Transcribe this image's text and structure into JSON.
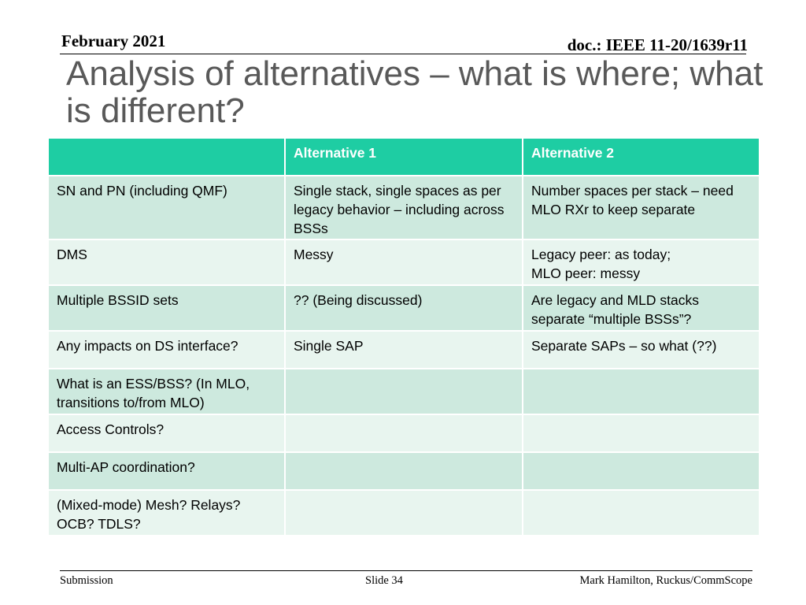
{
  "header": {
    "date": "February 2021",
    "doc_id": "doc.: IEEE 11-20/1639r11"
  },
  "title": "Analysis of alternatives – what is where; what is different?",
  "table": {
    "headers": [
      "",
      "Alternative 1",
      "Alternative 2"
    ],
    "rows": [
      [
        "SN and PN (including QMF)",
        "Single stack, single spaces as per legacy behavior – including across BSSs",
        "Number spaces per stack – need MLO RXr to keep separate"
      ],
      [
        "DMS",
        "Messy",
        "Legacy peer: as today;\nMLO peer: messy"
      ],
      [
        "Multiple BSSID sets",
        "?? (Being discussed)",
        "Are legacy and MLD stacks separate “multiple BSSs”?"
      ],
      [
        "Any impacts on DS interface?",
        "Single SAP",
        "Separate SAPs – so what (??)"
      ],
      [
        "What is an ESS/BSS?  (In MLO, transitions to/from MLO)",
        "",
        ""
      ],
      [
        "Access Controls?",
        "",
        ""
      ],
      [
        "Multi-AP coordination?",
        "",
        ""
      ],
      [
        "(Mixed-mode) Mesh?  Relays?  OCB?  TDLS?",
        "",
        ""
      ]
    ]
  },
  "footer": {
    "left": "Submission",
    "center": "Slide 34",
    "right": "Mark Hamilton, Ruckus/CommScope"
  },
  "colors": {
    "header_fill": "#1ecda3",
    "row_dark": "#cde9de",
    "row_light": "#e8f5ef",
    "title_text": "#595959"
  }
}
